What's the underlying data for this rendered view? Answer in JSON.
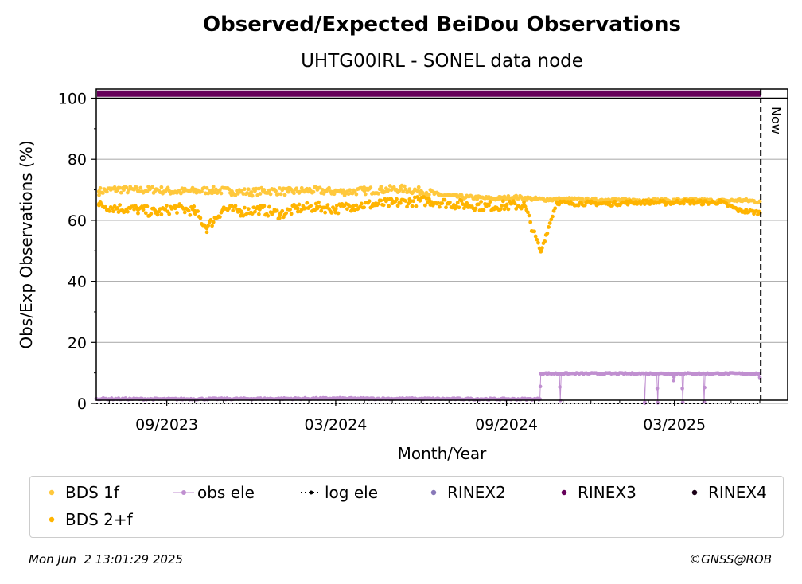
{
  "chart_data": {
    "type": "scatter",
    "title": "Observed/Expected BeiDou Observations",
    "subtitle": "UHTG00IRL - SONEL data node",
    "xlabel": "Month/Year",
    "ylabel": "Obs/Exp Observations (%)",
    "ylim": [
      0,
      103
    ],
    "xlim": [
      "2023-06-17",
      "2025-07-01"
    ],
    "x_ticks": [
      "2023-09-01",
      "2024-03-01",
      "2024-09-01",
      "2025-03-01"
    ],
    "x_tick_labels": [
      "09/2023",
      "03/2024",
      "09/2024",
      "03/2025"
    ],
    "y_ticks": [
      0,
      20,
      40,
      60,
      80,
      100
    ],
    "grid": "horizontal",
    "now_date": "2025-06-02",
    "now_label": "Now",
    "series": [
      {
        "name": "BDS 1f",
        "color": "#ffc83c",
        "marker": "dot",
        "points": [
          [
            "2023-06-20",
            69.5
          ],
          [
            "2023-07-10",
            70.2
          ],
          [
            "2023-08-01",
            69.8
          ],
          [
            "2023-08-20",
            70.1
          ],
          [
            "2023-09-10",
            69.4
          ],
          [
            "2023-10-01",
            69.6
          ],
          [
            "2023-10-20",
            69.9
          ],
          [
            "2023-11-10",
            69.5
          ],
          [
            "2023-12-01",
            69.2
          ],
          [
            "2023-12-20",
            69.7
          ],
          [
            "2024-01-10",
            69.4
          ],
          [
            "2024-02-01",
            69.8
          ],
          [
            "2024-02-20",
            69.6
          ],
          [
            "2024-03-10",
            69.3
          ],
          [
            "2024-04-01",
            69.7
          ],
          [
            "2024-04-20",
            70.0
          ],
          [
            "2024-05-10",
            70.3
          ],
          [
            "2024-06-01",
            69.6
          ],
          [
            "2024-06-20",
            68.4
          ],
          [
            "2024-07-10",
            67.8
          ],
          [
            "2024-08-01",
            67.4
          ],
          [
            "2024-08-20",
            67.1
          ],
          [
            "2024-09-10",
            67.6
          ],
          [
            "2024-10-01",
            67.0
          ],
          [
            "2024-10-20",
            66.8
          ],
          [
            "2024-11-10",
            66.9
          ],
          [
            "2024-12-01",
            66.6
          ],
          [
            "2024-12-20",
            66.8
          ],
          [
            "2025-01-10",
            66.5
          ],
          [
            "2025-02-01",
            66.7
          ],
          [
            "2025-02-20",
            66.4
          ],
          [
            "2025-03-10",
            66.6
          ],
          [
            "2025-04-01",
            66.5
          ],
          [
            "2025-04-20",
            66.3
          ],
          [
            "2025-05-10",
            66.6
          ],
          [
            "2025-06-01",
            66.2
          ]
        ]
      },
      {
        "name": "BDS 2+f",
        "color": "#ffb400",
        "marker": "dot",
        "points": [
          [
            "2023-06-20",
            65.0
          ],
          [
            "2023-07-10",
            64.0
          ],
          [
            "2023-08-01",
            63.5
          ],
          [
            "2023-08-20",
            62.5
          ],
          [
            "2023-09-10",
            64.0
          ],
          [
            "2023-10-01",
            63.0
          ],
          [
            "2023-10-14",
            57.5
          ],
          [
            "2023-11-01",
            63.8
          ],
          [
            "2023-11-20",
            62.9
          ],
          [
            "2023-12-10",
            63.6
          ],
          [
            "2024-01-01",
            62.0
          ],
          [
            "2024-01-20",
            63.9
          ],
          [
            "2024-02-10",
            64.4
          ],
          [
            "2024-03-01",
            63.7
          ],
          [
            "2024-03-20",
            64.8
          ],
          [
            "2024-04-10",
            65.2
          ],
          [
            "2024-05-01",
            65.6
          ],
          [
            "2024-05-20",
            66.1
          ],
          [
            "2024-06-10",
            66.4
          ],
          [
            "2024-07-01",
            65.5
          ],
          [
            "2024-07-20",
            65.0
          ],
          [
            "2024-08-10",
            64.6
          ],
          [
            "2024-09-01",
            64.8
          ],
          [
            "2024-09-20",
            65.0
          ],
          [
            "2024-10-08",
            49.8
          ],
          [
            "2024-10-25",
            65.9
          ],
          [
            "2024-11-10",
            65.5
          ],
          [
            "2024-12-01",
            65.6
          ],
          [
            "2024-12-20",
            65.4
          ],
          [
            "2025-01-10",
            65.8
          ],
          [
            "2025-02-01",
            66.0
          ],
          [
            "2025-02-20",
            65.7
          ],
          [
            "2025-03-10",
            66.1
          ],
          [
            "2025-04-01",
            65.8
          ],
          [
            "2025-04-20",
            66.0
          ],
          [
            "2025-05-10",
            63.2
          ],
          [
            "2025-06-01",
            62.5
          ]
        ]
      },
      {
        "name": "obs ele",
        "color": "#c08fd0",
        "marker": "dot-line",
        "points": [
          [
            "2023-06-17",
            1.5
          ],
          [
            "2023-09-01",
            1.4
          ],
          [
            "2023-12-01",
            1.5
          ],
          [
            "2024-03-01",
            1.6
          ],
          [
            "2024-06-01",
            1.5
          ],
          [
            "2024-09-01",
            1.4
          ],
          [
            "2024-10-07",
            1.4
          ],
          [
            "2024-10-08",
            9.8
          ],
          [
            "2024-10-28",
            9.8
          ],
          [
            "2024-10-29",
            1.0
          ],
          [
            "2024-10-30",
            9.8
          ],
          [
            "2025-01-27",
            9.8
          ],
          [
            "2025-01-28",
            0.3
          ],
          [
            "2025-01-29",
            9.8
          ],
          [
            "2025-02-10",
            9.8
          ],
          [
            "2025-02-11",
            0.2
          ],
          [
            "2025-02-12",
            9.8
          ],
          [
            "2025-02-27",
            9.8
          ],
          [
            "2025-02-28",
            7.5
          ],
          [
            "2025-03-01",
            9.8
          ],
          [
            "2025-03-09",
            9.8
          ],
          [
            "2025-03-10",
            0.3
          ],
          [
            "2025-03-11",
            9.8
          ],
          [
            "2025-04-01",
            9.8
          ],
          [
            "2025-04-02",
            0.5
          ],
          [
            "2025-04-03",
            9.8
          ],
          [
            "2025-05-31",
            9.8
          ],
          [
            "2025-06-01",
            8.5
          ]
        ]
      },
      {
        "name": "log ele",
        "color": "#000000",
        "marker": "dotted-line",
        "points": [
          [
            "2023-06-17",
            0
          ],
          [
            "2025-06-02",
            0
          ]
        ]
      },
      {
        "name": "RINEX2",
        "color": "#8878b8",
        "marker": "dot",
        "points": []
      },
      {
        "name": "RINEX3",
        "color": "#66005a",
        "marker": "band",
        "points": [
          [
            "2023-06-17",
            101.5
          ],
          [
            "2025-06-02",
            101.5
          ]
        ]
      },
      {
        "name": "RINEX4",
        "color": "#1a0016",
        "marker": "dot",
        "points": []
      }
    ]
  },
  "footer": {
    "timestamp": "Mon Jun  2 13:01:29 2025",
    "credit": "©GNSS@ROB"
  }
}
